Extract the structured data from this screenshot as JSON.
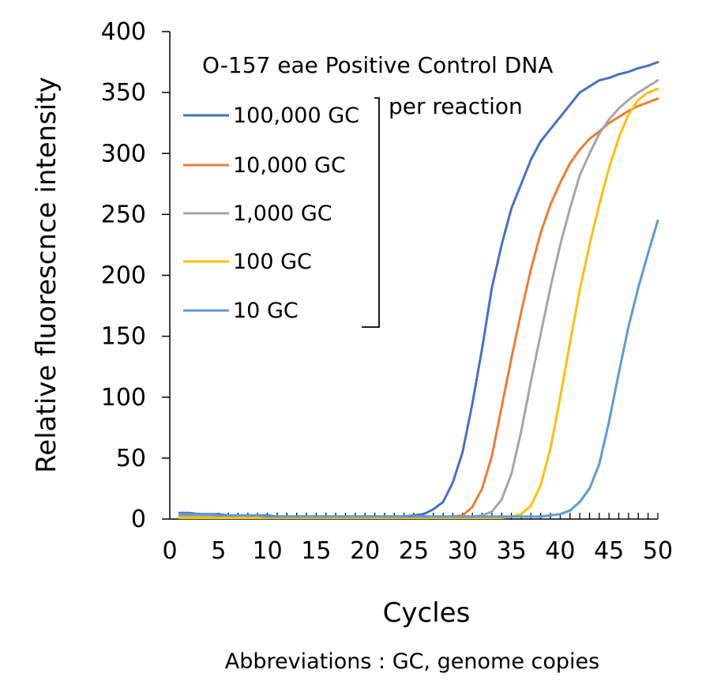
{
  "chart_data": {
    "type": "line",
    "title": "",
    "annotation": {
      "line1": "O-157 eae Positive Control DNA",
      "line2": "per reaction"
    },
    "xlabel": "Cycles",
    "ylabel": "Relative fluorescnce intensity",
    "xlim": [
      0,
      50
    ],
    "ylim": [
      0,
      400
    ],
    "x_ticks": [
      "0",
      "5",
      "10",
      "15",
      "20",
      "25",
      "30",
      "35",
      "40",
      "45",
      "50"
    ],
    "y_ticks": [
      "0",
      "50",
      "100",
      "150",
      "200",
      "250",
      "300",
      "350",
      "400"
    ],
    "grid": false,
    "legend_position": "upper-left",
    "footnote": "Abbreviations : GC, genome copies",
    "x": [
      1,
      2,
      3,
      4,
      5,
      6,
      7,
      8,
      9,
      10,
      11,
      12,
      13,
      14,
      15,
      16,
      17,
      18,
      19,
      20,
      21,
      22,
      23,
      24,
      25,
      26,
      27,
      28,
      29,
      30,
      31,
      32,
      33,
      34,
      35,
      36,
      37,
      38,
      39,
      40,
      41,
      42,
      43,
      44,
      45,
      46,
      47,
      48,
      49,
      50
    ],
    "series": [
      {
        "name": "100,000 GC",
        "color": "#4472C4",
        "values": [
          5,
          5,
          4,
          4,
          4,
          3,
          3,
          3,
          3,
          3,
          2,
          2,
          2,
          2,
          2,
          2,
          2,
          2,
          2,
          2,
          2,
          2,
          2,
          2,
          3,
          4,
          8,
          14,
          30,
          55,
          95,
          140,
          190,
          225,
          255,
          275,
          295,
          310,
          320,
          330,
          340,
          350,
          355,
          360,
          362,
          365,
          367,
          370,
          372,
          375
        ]
      },
      {
        "name": "10,000 GC",
        "color": "#ED7D31",
        "values": [
          3,
          3,
          3,
          3,
          3,
          3,
          2,
          2,
          2,
          2,
          2,
          2,
          2,
          2,
          2,
          2,
          2,
          2,
          2,
          2,
          2,
          2,
          2,
          2,
          2,
          2,
          2,
          2,
          2,
          3,
          10,
          25,
          52,
          92,
          132,
          170,
          205,
          235,
          258,
          276,
          292,
          303,
          312,
          318,
          325,
          330,
          335,
          339,
          342,
          345
        ]
      },
      {
        "name": "1,000 GC",
        "color": "#A5A5A5",
        "values": [
          2,
          2,
          2,
          2,
          2,
          2,
          2,
          2,
          2,
          2,
          2,
          2,
          2,
          2,
          2,
          2,
          2,
          2,
          2,
          2,
          2,
          2,
          2,
          2,
          2,
          2,
          2,
          2,
          2,
          2,
          2,
          3,
          6,
          16,
          37,
          72,
          113,
          152,
          190,
          225,
          255,
          282,
          300,
          316,
          328,
          337,
          344,
          350,
          355,
          360
        ]
      },
      {
        "name": "100 GC",
        "color": "#FFC000",
        "values": [
          1,
          1,
          1,
          1,
          1,
          1,
          1,
          1,
          1,
          1,
          1,
          1,
          1,
          1,
          1,
          1,
          1,
          1,
          1,
          1,
          1,
          1,
          1,
          1,
          1,
          1,
          1,
          1,
          1,
          1,
          1,
          1,
          1,
          1,
          2,
          4,
          11,
          28,
          58,
          100,
          145,
          188,
          225,
          258,
          288,
          313,
          332,
          344,
          350,
          353
        ]
      },
      {
        "name": "10 GC",
        "color": "#5B9BD5",
        "values": [
          4,
          4,
          4,
          4,
          3,
          3,
          3,
          3,
          3,
          2,
          2,
          2,
          2,
          2,
          2,
          2,
          2,
          2,
          2,
          2,
          2,
          2,
          2,
          2,
          2,
          2,
          2,
          2,
          2,
          2,
          2,
          2,
          2,
          2,
          2,
          2,
          2,
          2,
          3,
          4,
          7,
          14,
          25,
          45,
          80,
          120,
          158,
          190,
          218,
          245
        ]
      }
    ]
  }
}
